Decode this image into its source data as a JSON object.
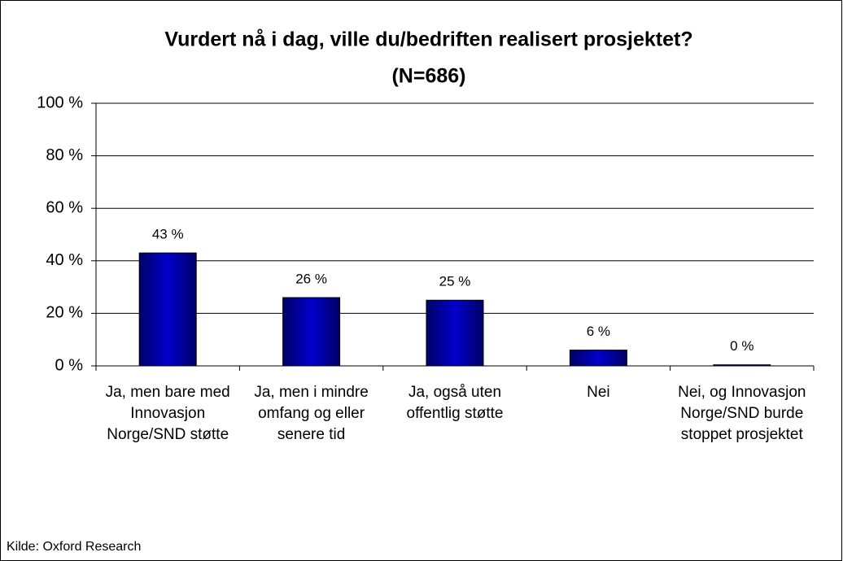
{
  "chart_data": {
    "type": "bar",
    "title": "Vurdert nå i dag, ville du/bedriften realisert prosjektet?",
    "subtitle": "(N=686)",
    "categories": [
      "Ja, men bare med Innovasjon Norge/SND støtte",
      "Ja, men i mindre omfang og eller senere tid",
      "Ja, også uten offentlig støtte",
      "Nei",
      "Nei, og Innovasjon Norge/SND burde stoppet prosjektet"
    ],
    "values": [
      43,
      26,
      25,
      6,
      0.4
    ],
    "value_labels": [
      "43 %",
      "26 %",
      "25 %",
      "6 %",
      "0 %"
    ],
    "color": "#0000cc",
    "ylim": [
      0,
      100
    ],
    "yticks": [
      {
        "value": 0,
        "label": "0 %"
      },
      {
        "value": 20,
        "label": "20 %"
      },
      {
        "value": 40,
        "label": "40 %"
      },
      {
        "value": 60,
        "label": "60 %"
      },
      {
        "value": 80,
        "label": "80 %"
      },
      {
        "value": 100,
        "label": "100 %"
      }
    ],
    "grid": true,
    "source": "Kilde: Oxford Research"
  }
}
